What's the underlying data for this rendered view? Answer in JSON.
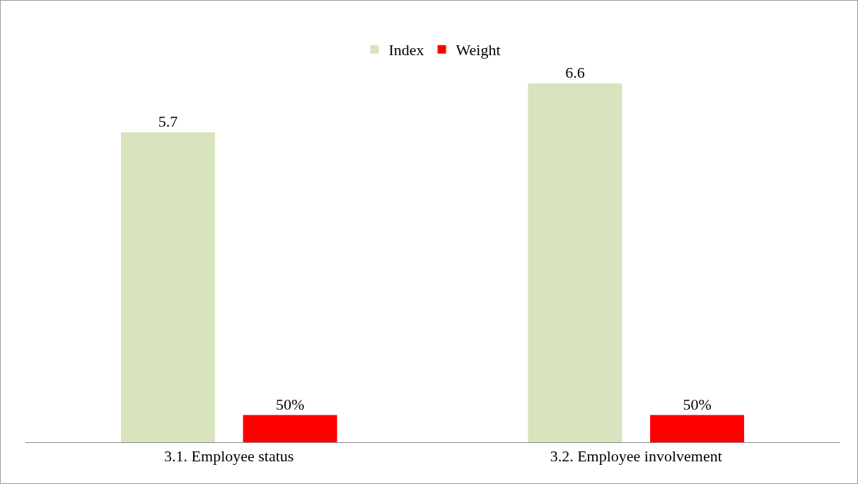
{
  "chart_data": {
    "type": "bar",
    "categories": [
      "3.1. Employee status",
      "3.2. Employee involvement"
    ],
    "series": [
      {
        "name": "Index",
        "color": "#d7e4bd",
        "values": [
          5.7,
          6.6
        ],
        "value_labels": [
          "5.7",
          "6.6"
        ]
      },
      {
        "name": "Weight",
        "color": "#ff0000",
        "values": [
          0.5,
          0.5
        ],
        "value_labels": [
          "50%",
          "50%"
        ]
      }
    ],
    "legend": "top",
    "grid": false
  }
}
